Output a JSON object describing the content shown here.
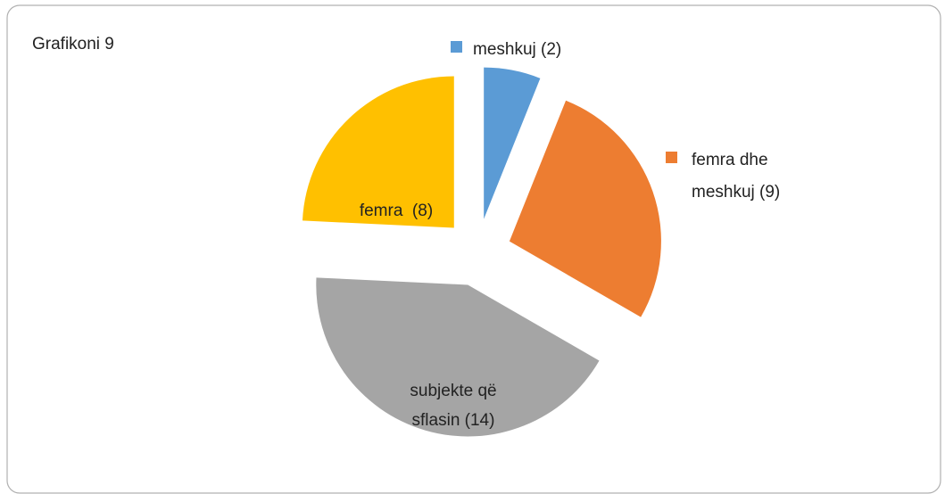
{
  "chart_data": {
    "type": "pie",
    "title": "Grafikoni 9",
    "categories": [
      "meshkuj (2)",
      "femra dhe meshkuj (9)",
      "subjekte që sflasin (14)",
      "femra  (8)"
    ],
    "values": [
      2,
      9,
      14,
      8
    ],
    "colors": [
      "#5b9bd5",
      "#ed7d31",
      "#a5a5a5",
      "#ffc000"
    ],
    "exploded": true
  }
}
